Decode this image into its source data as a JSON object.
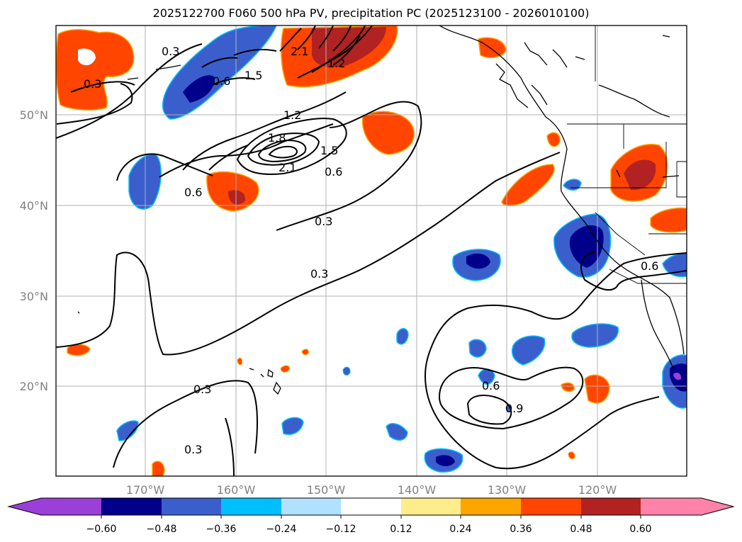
{
  "title": "2025122700 F060 500 hPa PV, precipitation PC (2025123100 - 2026010100)",
  "map": {
    "lat_labels": [
      "50°N",
      "40°N",
      "30°N",
      "20°N"
    ],
    "lon_labels": [
      "170°W",
      "160°W",
      "150°W",
      "140°W",
      "130°W",
      "120°W"
    ],
    "contour_labels": [
      "0.3",
      "0.3",
      "0.6",
      "1.5",
      "1.2",
      "1.8",
      "2.1",
      "1.5",
      "0.6",
      "0.6",
      "0.3",
      "0.3",
      "0.3",
      "0.3",
      "0.6",
      "0.6",
      "0.9",
      "1.2",
      "2.1"
    ],
    "grid": true
  },
  "colorbar": {
    "tick_labels": [
      "−0.60",
      "−0.48",
      "−0.36",
      "−0.24",
      "−0.12",
      "0.12",
      "0.24",
      "0.36",
      "0.48",
      "0.60"
    ],
    "colors": [
      "#9b3fd9",
      "#00008b",
      "#3a5fcd",
      "#00bfff",
      "#b0e2ff",
      "#ffffff",
      "#ffec8b",
      "#ffa500",
      "#ff4500",
      "#b22222",
      "#ff82ab"
    ]
  }
}
